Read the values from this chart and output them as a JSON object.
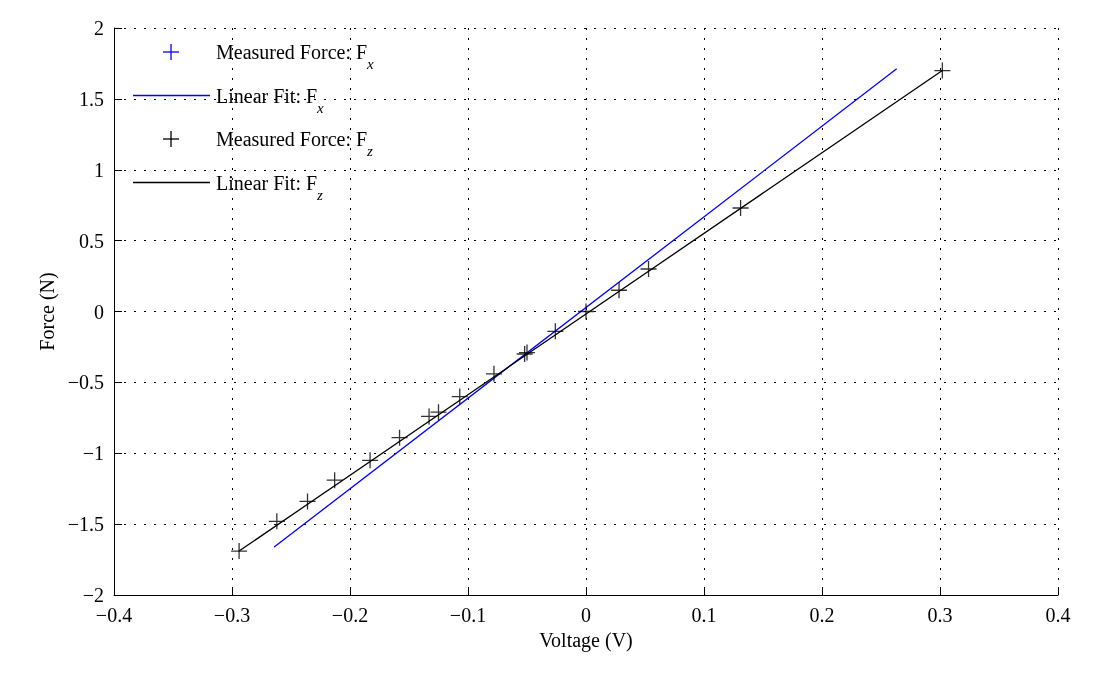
{
  "chart_data": {
    "type": "scatter",
    "xlabel": "Voltage (V)",
    "ylabel": "Force (N)",
    "xlim": [
      -0.4,
      0.4
    ],
    "xticks": [
      -0.4,
      -0.3,
      -0.2,
      -0.1,
      0,
      0.1,
      0.2,
      0.3,
      0.4
    ],
    "ylim": [
      -2,
      2
    ],
    "yticks": [
      -2,
      -1.5,
      -1,
      -0.5,
      0,
      0.5,
      1,
      1.5,
      2
    ],
    "grid": true,
    "legend": "top left",
    "series": [
      {
        "name": "Measured Force: F$_{x}$",
        "marker": "cross",
        "color": "#0000ff"
      },
      {
        "name": "Linear Fit: F$_{x}$",
        "type": "line",
        "marker": "none",
        "color": "#0000ff",
        "x": [
          -0.264,
          0.263
        ],
        "values": [
          -1.66,
          1.71
        ]
      },
      {
        "name": "Measured Force: F$_{z}$",
        "marker": "cross",
        "color": "#000000",
        "x": [
          -0.294,
          -0.262,
          -0.236,
          -0.213,
          -0.183,
          -0.158,
          -0.133,
          -0.125,
          -0.107,
          -0.078,
          -0.052,
          -0.05,
          -0.026,
          0,
          0.028,
          0.053,
          0.131,
          0.302
        ],
        "values": [
          -1.69,
          -1.48,
          -1.34,
          -1.19,
          -1.05,
          -0.89,
          -0.74,
          -0.71,
          -0.6,
          -0.44,
          -0.3,
          -0.29,
          -0.14,
          0,
          0.15,
          0.3,
          0.73,
          1.7
        ]
      },
      {
        "name": "Linear Fit: F$_{z}$",
        "type": "line",
        "marker": "none",
        "color": "#000000",
        "x": [
          -0.294,
          0.302
        ],
        "values": [
          -1.69,
          1.7
        ]
      }
    ]
  }
}
